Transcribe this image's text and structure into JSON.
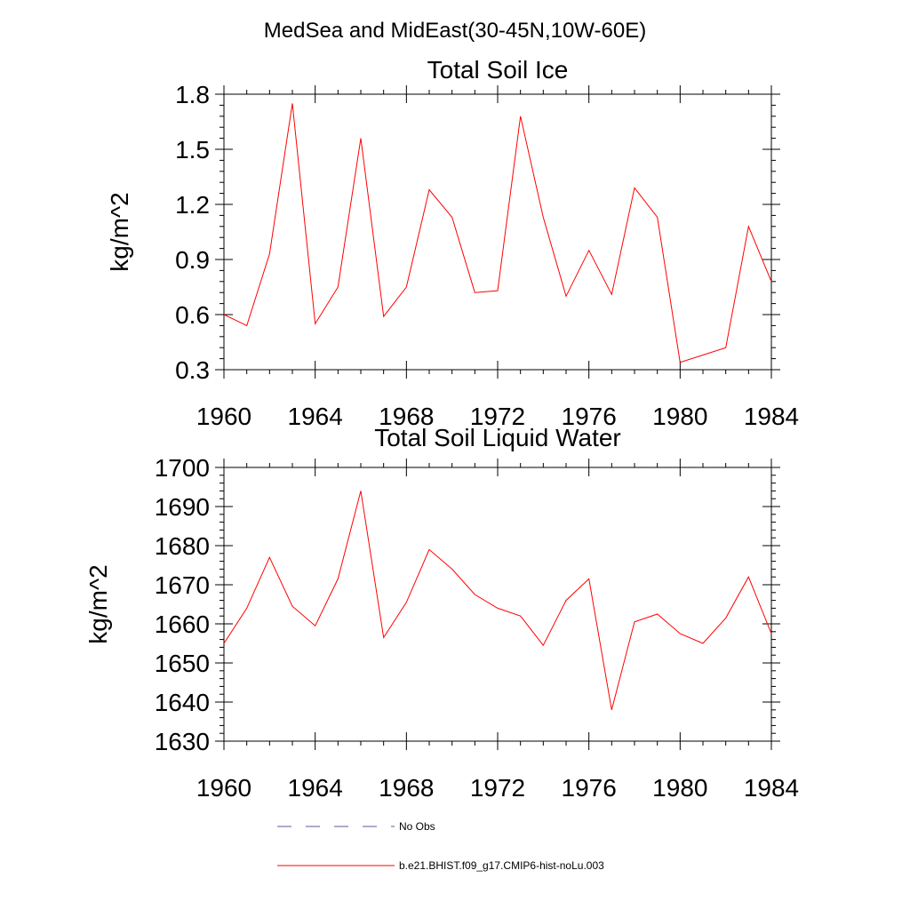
{
  "figure_title": "MedSea and MidEast(30-45N,10W-60E)",
  "legend": {
    "entries": [
      {
        "label": "No Obs",
        "style": "dashed",
        "color": "#5a5a9a"
      },
      {
        "label": "b.e21.BHIST.f09_g17.CMIP6-hist-noLu.003",
        "style": "solid",
        "color": "#ff0000"
      }
    ]
  },
  "chart_data": [
    {
      "type": "line",
      "title": "Total Soil Ice",
      "xlabel": "",
      "ylabel": "kg/m^2",
      "xlim": [
        1960,
        1984
      ],
      "ylim": [
        0.3,
        1.8
      ],
      "xticks": [
        1960,
        1964,
        1968,
        1972,
        1976,
        1980,
        1984
      ],
      "yticks": [
        0.3,
        0.6,
        0.9,
        1.2,
        1.5,
        1.8
      ],
      "ytick_labels": [
        "0.3",
        "0.6",
        "0.9",
        "1.2",
        "1.5",
        "1.8"
      ],
      "grid": false,
      "x": [
        1960,
        1961,
        1962,
        1963,
        1964,
        1965,
        1966,
        1967,
        1968,
        1969,
        1970,
        1971,
        1972,
        1973,
        1974,
        1975,
        1976,
        1977,
        1978,
        1979,
        1980,
        1981,
        1982,
        1983,
        1984
      ],
      "series": [
        {
          "name": "b.e21.BHIST.f09_g17.CMIP6-hist-noLu.003",
          "color": "#ff0000",
          "values": [
            0.6,
            0.54,
            0.93,
            1.75,
            0.55,
            0.75,
            1.56,
            0.59,
            0.75,
            1.28,
            1.13,
            0.72,
            0.73,
            1.68,
            1.13,
            0.7,
            0.95,
            0.71,
            1.29,
            1.13,
            0.34,
            0.38,
            0.42,
            1.08,
            0.78
          ]
        }
      ]
    },
    {
      "type": "line",
      "title": "Total Soil Liquid Water",
      "xlabel": "",
      "ylabel": "kg/m^2",
      "xlim": [
        1960,
        1984
      ],
      "ylim": [
        1630,
        1700
      ],
      "xticks": [
        1960,
        1964,
        1968,
        1972,
        1976,
        1980,
        1984
      ],
      "yticks": [
        1630,
        1640,
        1650,
        1660,
        1670,
        1680,
        1690,
        1700
      ],
      "ytick_labels": [
        "1630",
        "1640",
        "1650",
        "1660",
        "1670",
        "1680",
        "1690",
        "1700"
      ],
      "grid": false,
      "x": [
        1960,
        1961,
        1962,
        1963,
        1964,
        1965,
        1966,
        1967,
        1968,
        1969,
        1970,
        1971,
        1972,
        1973,
        1974,
        1975,
        1976,
        1977,
        1978,
        1979,
        1980,
        1981,
        1982,
        1983,
        1984
      ],
      "series": [
        {
          "name": "b.e21.BHIST.f09_g17.CMIP6-hist-noLu.003",
          "color": "#ff0000",
          "values": [
            1655,
            1664,
            1677,
            1664.5,
            1659.5,
            1671.5,
            1694,
            1656.5,
            1665.5,
            1679,
            1674,
            1667.5,
            1664,
            1662,
            1654.5,
            1666,
            1671.5,
            1638,
            1660.5,
            1662.5,
            1657.5,
            1655,
            1661.5,
            1672,
            1657.5
          ]
        }
      ]
    }
  ]
}
